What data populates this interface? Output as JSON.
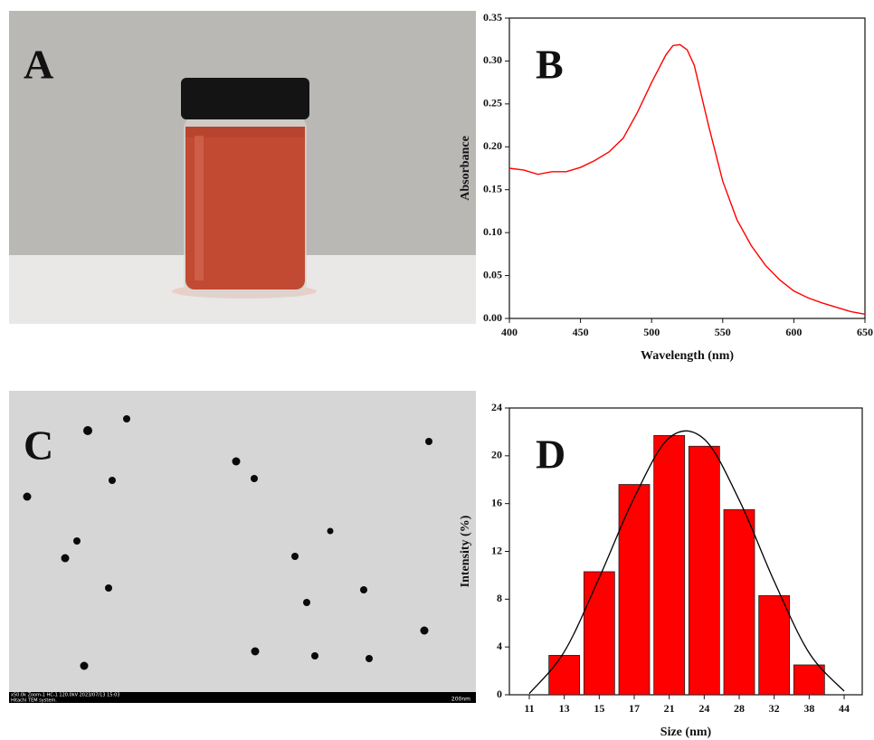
{
  "photos": {
    "a": {
      "label": "A"
    },
    "c": {
      "label": "C",
      "caption_line1": "x50.0k Zoom-1 HC-1 120.0kV 2023/07/13 15:03",
      "caption_line2": "Hitachi TEM system.",
      "scale": "200nm"
    }
  },
  "chart_data": [
    {
      "type": "line",
      "panel_label": "B",
      "x_label": "Wavelength (nm)",
      "y_label": "Absorbance",
      "color": "#ff0000",
      "x": [
        400,
        410,
        420,
        430,
        440,
        450,
        460,
        470,
        480,
        490,
        500,
        510,
        515,
        520,
        525,
        530,
        540,
        550,
        560,
        570,
        580,
        590,
        600,
        610,
        620,
        630,
        640,
        650
      ],
      "values": [
        0.175,
        0.173,
        0.168,
        0.171,
        0.171,
        0.176,
        0.184,
        0.194,
        0.21,
        0.24,
        0.275,
        0.307,
        0.318,
        0.319,
        0.313,
        0.295,
        0.225,
        0.16,
        0.115,
        0.085,
        0.062,
        0.045,
        0.032,
        0.024,
        0.018,
        0.013,
        0.008,
        0.005
      ],
      "xlim": [
        400,
        650
      ],
      "xticks": [
        400,
        450,
        500,
        550,
        600,
        650
      ],
      "ylim": [
        0,
        0.35
      ],
      "yticks": [
        {
          "value": 0,
          "label": "0.00"
        },
        {
          "value": 0.05,
          "label": "0.05"
        },
        {
          "value": 0.1,
          "label": "0.10"
        },
        {
          "value": 0.15,
          "label": "0.15"
        },
        {
          "value": 0.2,
          "label": "0.20"
        },
        {
          "value": 0.25,
          "label": "0.25"
        },
        {
          "value": 0.3,
          "label": "0.30"
        },
        {
          "value": 0.35,
          "label": "0.35"
        }
      ]
    },
    {
      "type": "bar",
      "panel_label": "D",
      "x_label": "Size (nm)",
      "y_label": "Intensity (%)",
      "color": "#ff0000",
      "curve_color": "#000000",
      "categories": [
        "11",
        "13",
        "15",
        "17",
        "21",
        "24",
        "28",
        "32",
        "38",
        "44"
      ],
      "values": [
        null,
        3.3,
        10.3,
        17.6,
        21.7,
        20.8,
        15.5,
        8.3,
        2.5,
        null
      ],
      "curve_values": [
        0.1,
        3.6,
        9.8,
        16.5,
        21.5,
        21.4,
        16.3,
        9.5,
        3.5,
        0.3
      ],
      "ylim": [
        0,
        24
      ],
      "yticks": [
        0,
        4,
        8,
        12,
        16,
        20,
        24
      ]
    }
  ]
}
